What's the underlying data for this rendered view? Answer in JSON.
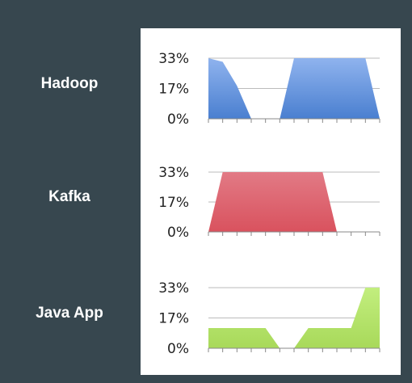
{
  "rows": [
    {
      "label": "Hadoop"
    },
    {
      "label": "Kafka"
    },
    {
      "label": "Java App"
    }
  ],
  "chart_data": [
    {
      "type": "area",
      "yticks": [
        "33%",
        "17%",
        "0%"
      ],
      "ylim": [
        0,
        33
      ],
      "x": [
        0,
        1,
        2,
        3,
        4,
        5,
        6,
        7,
        8,
        9,
        10,
        11,
        12
      ],
      "series": [
        {
          "values": [
            33,
            31,
            18,
            0,
            0,
            0,
            33,
            33,
            33,
            33,
            33,
            33,
            0
          ]
        }
      ],
      "color": "#4a7fd0",
      "grid": true
    },
    {
      "type": "area",
      "yticks": [
        "33%",
        "17%",
        "0%"
      ],
      "ylim": [
        0,
        33
      ],
      "x": [
        0,
        1,
        2,
        3,
        4,
        5,
        6,
        7,
        8,
        9,
        10,
        11,
        12
      ],
      "series": [
        {
          "values": [
            0,
            33,
            33,
            33,
            33,
            33,
            33,
            33,
            33,
            0,
            0,
            0,
            0
          ]
        }
      ],
      "color": "#d9525e",
      "grid": true
    },
    {
      "type": "area",
      "yticks": [
        "33%",
        "17%",
        "0%"
      ],
      "ylim": [
        0,
        33
      ],
      "x": [
        0,
        1,
        2,
        3,
        4,
        5,
        6,
        7,
        8,
        9,
        10,
        11,
        12
      ],
      "series": [
        {
          "values": [
            11,
            11,
            11,
            11,
            11,
            0,
            0,
            11,
            11,
            11,
            11,
            33,
            33
          ]
        }
      ],
      "color": "#a8d95a",
      "grid": true
    }
  ]
}
